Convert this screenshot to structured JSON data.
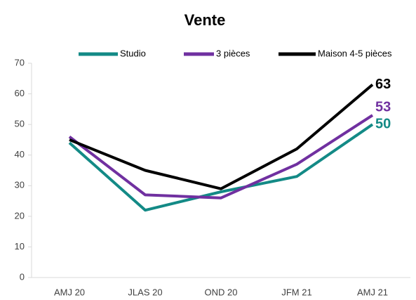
{
  "chart_data": {
    "type": "line",
    "title": "Vente",
    "categories": [
      "AMJ 20",
      "JLAS 20",
      "OND 20",
      "JFM 21",
      "AMJ 21"
    ],
    "series": [
      {
        "name": "Studio",
        "color": "#138a86",
        "values": [
          44,
          22,
          28,
          33,
          50
        ]
      },
      {
        "name": "3 pièces",
        "color": "#7030a0",
        "values": [
          46,
          27,
          26,
          37,
          53
        ]
      },
      {
        "name": "Maison 4-5 pièces",
        "color": "#000000",
        "values": [
          45,
          35,
          29,
          42,
          63
        ]
      }
    ],
    "ylim": [
      0,
      70
    ],
    "yticks": [
      0,
      10,
      20,
      30,
      40,
      50,
      60,
      70
    ],
    "grid": false,
    "legend": "top"
  }
}
